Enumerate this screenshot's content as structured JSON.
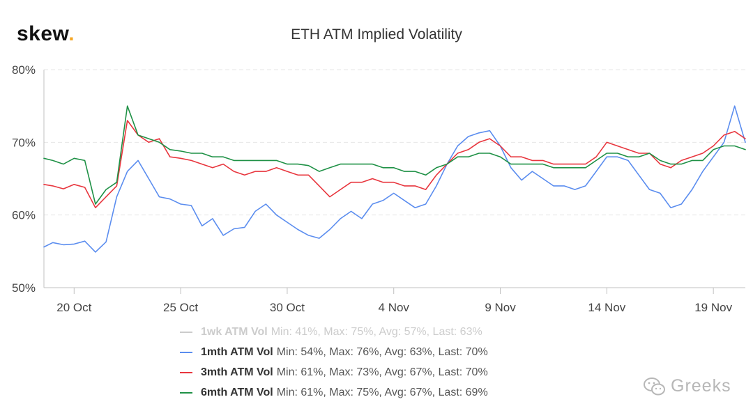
{
  "brand": {
    "name": "skew",
    "dot": "."
  },
  "watermark": {
    "text": "Greeks",
    "icon": "wechat-icon"
  },
  "colors": {
    "1wk": "#cccccc",
    "1mth": "#5b8def",
    "3mth": "#e8363e",
    "6mth": "#1f9146",
    "grid": "#e6e6e6",
    "axis": "#c0c0c0",
    "tick_text": "#444444"
  },
  "chart_data": {
    "type": "line",
    "title": "ETH ATM Implied Volatility",
    "xlabel": "",
    "ylabel": "",
    "x_unit": "date",
    "x_range": [
      "2019-10-18T14:00",
      "2019-11-20T12:00"
    ],
    "ylim": [
      50,
      80
    ],
    "y_ticks": [
      {
        "value": 50,
        "label": "50%"
      },
      {
        "value": 60,
        "label": "60%"
      },
      {
        "value": 70,
        "label": "70%"
      },
      {
        "value": 80,
        "label": "80%"
      }
    ],
    "x_ticks": [
      {
        "date": "2019-10-20",
        "label": "20 Oct"
      },
      {
        "date": "2019-10-25",
        "label": "25 Oct"
      },
      {
        "date": "2019-10-30",
        "label": "30 Oct"
      },
      {
        "date": "2019-11-04",
        "label": "4 Nov"
      },
      {
        "date": "2019-11-09",
        "label": "9 Nov"
      },
      {
        "date": "2019-11-14",
        "label": "14 Nov"
      },
      {
        "date": "2019-11-19",
        "label": "19 Nov"
      }
    ],
    "grid": true,
    "legend_position": "bottom",
    "series": [
      {
        "name": "1wk ATM Vol",
        "key": "1wk",
        "visible": false,
        "stats": "Min: 41%, Max: 75%, Avg: 57%, Last: 63%",
        "x": [],
        "values": []
      },
      {
        "name": "1mth ATM Vol",
        "key": "1mth",
        "visible": true,
        "stats": "Min: 54%, Max: 76%, Avg: 63%, Last: 70%",
        "x": [
          "2019-10-18T14:00",
          "2019-10-19T00:00",
          "2019-10-19T12:00",
          "2019-10-20T00:00",
          "2019-10-20T12:00",
          "2019-10-21T00:00",
          "2019-10-21T12:00",
          "2019-10-22T00:00",
          "2019-10-22T12:00",
          "2019-10-23T00:00",
          "2019-10-23T12:00",
          "2019-10-24T00:00",
          "2019-10-24T12:00",
          "2019-10-25T00:00",
          "2019-10-25T12:00",
          "2019-10-26T00:00",
          "2019-10-26T12:00",
          "2019-10-27T00:00",
          "2019-10-27T12:00",
          "2019-10-28T00:00",
          "2019-10-28T12:00",
          "2019-10-29T00:00",
          "2019-10-29T12:00",
          "2019-10-30T00:00",
          "2019-10-30T12:00",
          "2019-10-31T00:00",
          "2019-10-31T12:00",
          "2019-11-01T00:00",
          "2019-11-01T12:00",
          "2019-11-02T00:00",
          "2019-11-02T12:00",
          "2019-11-03T00:00",
          "2019-11-03T12:00",
          "2019-11-04T00:00",
          "2019-11-04T12:00",
          "2019-11-05T00:00",
          "2019-11-05T12:00",
          "2019-11-06T00:00",
          "2019-11-06T12:00",
          "2019-11-07T00:00",
          "2019-11-07T12:00",
          "2019-11-08T00:00",
          "2019-11-08T12:00",
          "2019-11-09T00:00",
          "2019-11-09T12:00",
          "2019-11-10T00:00",
          "2019-11-10T12:00",
          "2019-11-11T00:00",
          "2019-11-11T12:00",
          "2019-11-12T00:00",
          "2019-11-12T12:00",
          "2019-11-13T00:00",
          "2019-11-13T12:00",
          "2019-11-14T00:00",
          "2019-11-14T12:00",
          "2019-11-15T00:00",
          "2019-11-15T12:00",
          "2019-11-16T00:00",
          "2019-11-16T12:00",
          "2019-11-17T00:00",
          "2019-11-17T12:00",
          "2019-11-18T00:00",
          "2019-11-18T12:00",
          "2019-11-19T00:00",
          "2019-11-19T12:00",
          "2019-11-20T00:00",
          "2019-11-20T12:00"
        ],
        "values": [
          55.6,
          56.2,
          55.9,
          56.0,
          56.4,
          54.9,
          56.3,
          62.5,
          66.0,
          67.5,
          65.0,
          62.5,
          62.2,
          61.5,
          61.3,
          58.5,
          59.5,
          57.2,
          58.1,
          58.3,
          60.5,
          61.5,
          60.0,
          59.0,
          58.0,
          57.2,
          56.8,
          58.0,
          59.5,
          60.5,
          59.5,
          61.5,
          62.0,
          63.0,
          62.0,
          61.0,
          61.5,
          64.0,
          67.0,
          69.5,
          70.8,
          71.3,
          71.6,
          69.5,
          66.5,
          64.8,
          66.0,
          65.0,
          64.0,
          64.0,
          63.5,
          64.0,
          66.0,
          68.0,
          68.0,
          67.5,
          65.5,
          63.5,
          63.0,
          61.0,
          61.5,
          63.5,
          66.0,
          68.0,
          70.0,
          75.0,
          70.0
        ]
      },
      {
        "name": "3mth ATM Vol",
        "key": "3mth",
        "visible": true,
        "stats": "Min: 61%, Max: 73%, Avg: 67%, Last: 70%",
        "x": [
          "2019-10-18T14:00",
          "2019-10-19T00:00",
          "2019-10-19T12:00",
          "2019-10-20T00:00",
          "2019-10-20T12:00",
          "2019-10-21T00:00",
          "2019-10-21T12:00",
          "2019-10-22T00:00",
          "2019-10-22T12:00",
          "2019-10-23T00:00",
          "2019-10-23T12:00",
          "2019-10-24T00:00",
          "2019-10-24T12:00",
          "2019-10-25T00:00",
          "2019-10-25T12:00",
          "2019-10-26T00:00",
          "2019-10-26T12:00",
          "2019-10-27T00:00",
          "2019-10-27T12:00",
          "2019-10-28T00:00",
          "2019-10-28T12:00",
          "2019-10-29T00:00",
          "2019-10-29T12:00",
          "2019-10-30T00:00",
          "2019-10-30T12:00",
          "2019-10-31T00:00",
          "2019-10-31T12:00",
          "2019-11-01T00:00",
          "2019-11-01T12:00",
          "2019-11-02T00:00",
          "2019-11-02T12:00",
          "2019-11-03T00:00",
          "2019-11-03T12:00",
          "2019-11-04T00:00",
          "2019-11-04T12:00",
          "2019-11-05T00:00",
          "2019-11-05T12:00",
          "2019-11-06T00:00",
          "2019-11-06T12:00",
          "2019-11-07T00:00",
          "2019-11-07T12:00",
          "2019-11-08T00:00",
          "2019-11-08T12:00",
          "2019-11-09T00:00",
          "2019-11-09T12:00",
          "2019-11-10T00:00",
          "2019-11-10T12:00",
          "2019-11-11T00:00",
          "2019-11-11T12:00",
          "2019-11-12T00:00",
          "2019-11-12T12:00",
          "2019-11-13T00:00",
          "2019-11-13T12:00",
          "2019-11-14T00:00",
          "2019-11-14T12:00",
          "2019-11-15T00:00",
          "2019-11-15T12:00",
          "2019-11-16T00:00",
          "2019-11-16T12:00",
          "2019-11-17T00:00",
          "2019-11-17T12:00",
          "2019-11-18T00:00",
          "2019-11-18T12:00",
          "2019-11-19T00:00",
          "2019-11-19T12:00",
          "2019-11-20T00:00",
          "2019-11-20T12:00"
        ],
        "values": [
          64.2,
          64.0,
          63.6,
          64.2,
          63.8,
          61.0,
          62.5,
          64.0,
          73.0,
          71.0,
          70.0,
          70.5,
          68.0,
          67.8,
          67.5,
          67.0,
          66.5,
          67.0,
          66.0,
          65.5,
          66.0,
          66.0,
          66.5,
          66.0,
          65.5,
          65.5,
          64.0,
          62.5,
          63.5,
          64.5,
          64.5,
          65.0,
          64.5,
          64.5,
          64.0,
          64.0,
          63.5,
          65.5,
          67.0,
          68.5,
          69.0,
          70.0,
          70.5,
          69.5,
          68.0,
          68.0,
          67.5,
          67.5,
          67.0,
          67.0,
          67.0,
          67.0,
          68.0,
          70.0,
          69.5,
          69.0,
          68.5,
          68.5,
          67.0,
          66.5,
          67.5,
          68.0,
          68.5,
          69.5,
          71.0,
          71.5,
          70.5
        ]
      },
      {
        "name": "6mth ATM Vol",
        "key": "6mth",
        "visible": true,
        "stats": "Min: 61%, Max: 75%, Avg: 67%, Last: 69%",
        "x": [
          "2019-10-18T14:00",
          "2019-10-19T00:00",
          "2019-10-19T12:00",
          "2019-10-20T00:00",
          "2019-10-20T12:00",
          "2019-10-21T00:00",
          "2019-10-21T12:00",
          "2019-10-22T00:00",
          "2019-10-22T12:00",
          "2019-10-23T00:00",
          "2019-10-23T12:00",
          "2019-10-24T00:00",
          "2019-10-24T12:00",
          "2019-10-25T00:00",
          "2019-10-25T12:00",
          "2019-10-26T00:00",
          "2019-10-26T12:00",
          "2019-10-27T00:00",
          "2019-10-27T12:00",
          "2019-10-28T00:00",
          "2019-10-28T12:00",
          "2019-10-29T00:00",
          "2019-10-29T12:00",
          "2019-10-30T00:00",
          "2019-10-30T12:00",
          "2019-10-31T00:00",
          "2019-10-31T12:00",
          "2019-11-01T00:00",
          "2019-11-01T12:00",
          "2019-11-02T00:00",
          "2019-11-02T12:00",
          "2019-11-03T00:00",
          "2019-11-03T12:00",
          "2019-11-04T00:00",
          "2019-11-04T12:00",
          "2019-11-05T00:00",
          "2019-11-05T12:00",
          "2019-11-06T00:00",
          "2019-11-06T12:00",
          "2019-11-07T00:00",
          "2019-11-07T12:00",
          "2019-11-08T00:00",
          "2019-11-08T12:00",
          "2019-11-09T00:00",
          "2019-11-09T12:00",
          "2019-11-10T00:00",
          "2019-11-10T12:00",
          "2019-11-11T00:00",
          "2019-11-11T12:00",
          "2019-11-12T00:00",
          "2019-11-12T12:00",
          "2019-11-13T00:00",
          "2019-11-13T12:00",
          "2019-11-14T00:00",
          "2019-11-14T12:00",
          "2019-11-15T00:00",
          "2019-11-15T12:00",
          "2019-11-16T00:00",
          "2019-11-16T12:00",
          "2019-11-17T00:00",
          "2019-11-17T12:00",
          "2019-11-18T00:00",
          "2019-11-18T12:00",
          "2019-11-19T00:00",
          "2019-11-19T12:00",
          "2019-11-20T00:00",
          "2019-11-20T12:00"
        ],
        "values": [
          67.8,
          67.5,
          67.0,
          67.8,
          67.5,
          61.5,
          63.5,
          64.5,
          75.0,
          71.0,
          70.5,
          70.0,
          69.0,
          68.8,
          68.5,
          68.5,
          68.0,
          68.0,
          67.5,
          67.5,
          67.5,
          67.5,
          67.5,
          67.0,
          67.0,
          66.8,
          66.0,
          66.5,
          67.0,
          67.0,
          67.0,
          67.0,
          66.5,
          66.5,
          66.0,
          66.0,
          65.5,
          66.5,
          67.0,
          68.0,
          68.0,
          68.5,
          68.5,
          68.0,
          67.0,
          67.0,
          67.0,
          67.0,
          66.5,
          66.5,
          66.5,
          66.5,
          67.5,
          68.5,
          68.5,
          68.0,
          68.0,
          68.5,
          67.5,
          67.0,
          67.0,
          67.5,
          67.5,
          69.0,
          69.5,
          69.5,
          69.0
        ]
      }
    ]
  }
}
